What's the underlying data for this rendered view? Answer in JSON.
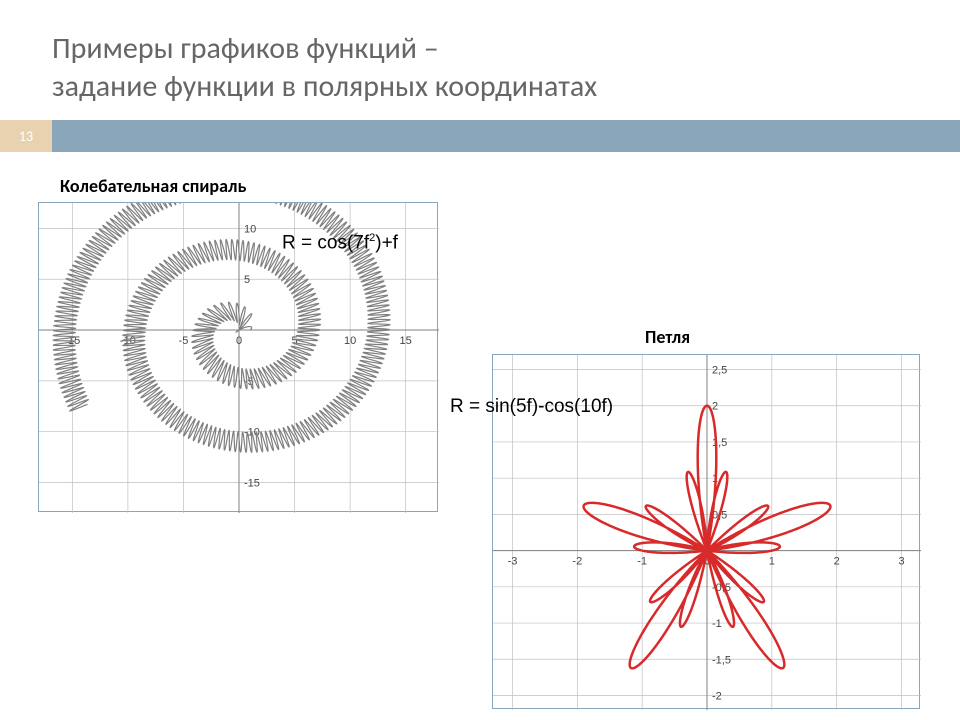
{
  "title_line1": "Примеры графиков функций –",
  "title_line2": "задание функции в полярных координатах",
  "page_number": "13",
  "colors": {
    "band": "#8aa6ba",
    "badge": "#e8d2b0",
    "title_text": "#666666",
    "grid": "#bfbfbf",
    "axis": "#808080",
    "tick_text": "#444444",
    "chart1_line": "#7f7f7f",
    "chart2_line": "#d82a2a",
    "background": "#ffffff"
  },
  "chart1": {
    "type": "line",
    "title": "Колебательная спираль",
    "formula_html": "R = cos(7f<sup>2</sup>)+f",
    "line_color": "#7f7f7f",
    "line_width": 1.2,
    "xlim": [
      -18,
      18
    ],
    "ylim": [
      -18,
      12.5
    ],
    "xticks": [
      -15,
      -10,
      -5,
      0,
      5,
      10,
      15
    ],
    "yticks": [
      -15,
      -10,
      -5,
      0,
      5,
      10
    ],
    "grid_color": "#bfbfbf",
    "polar_formula": "cos(7*t*t)+t",
    "t_range": [
      0,
      16.2
    ],
    "t_step": 0.0025
  },
  "chart2": {
    "type": "line",
    "title": "Петля",
    "formula_plain": "R = sin(5f)-cos(10f)",
    "line_color": "#d82a2a",
    "line_width": 2.5,
    "xlim": [
      -3.3,
      3.3
    ],
    "ylim": [
      -2.2,
      2.7
    ],
    "xticks": [
      -3,
      -2,
      -1,
      0,
      1,
      2,
      3
    ],
    "yticks": [
      -2,
      -1.5,
      -1,
      -0.5,
      0,
      0.5,
      1,
      1.5,
      2,
      2.5
    ],
    "ytick_labels": [
      "-2",
      "-1,5",
      "-1",
      "-0,5",
      "0",
      "0,5",
      "1",
      "1,5",
      "2",
      "2,5"
    ],
    "grid_color": "#bfbfbf",
    "polar_formula": "sin(5*t)-cos(10*t)",
    "t_range": [
      0,
      6.2832
    ],
    "t_step": 0.003
  }
}
